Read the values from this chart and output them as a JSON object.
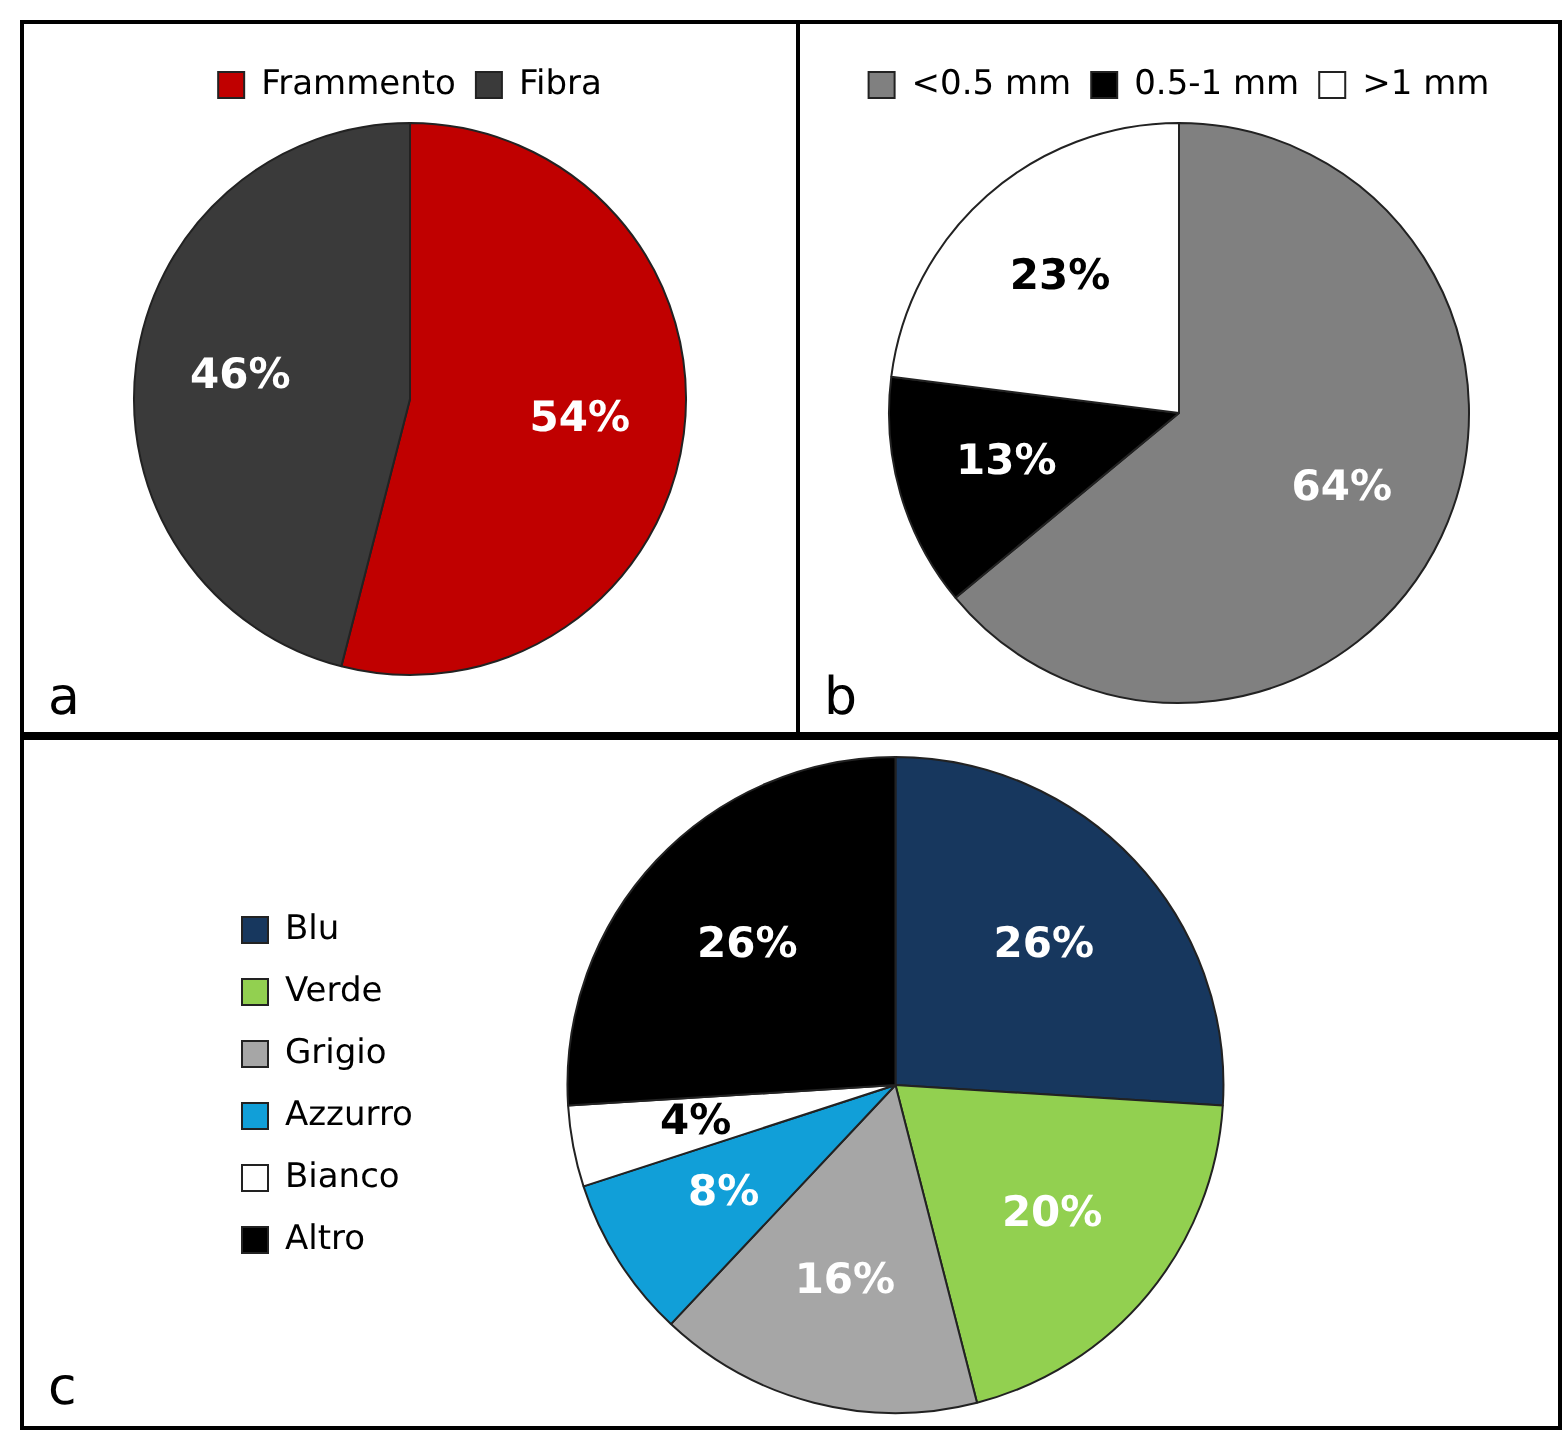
{
  "chart_data": [
    {
      "type": "pie",
      "categories": [
        "Frammento",
        "Fibra"
      ],
      "values": [
        54,
        46
      ],
      "value_labels": [
        "54%",
        "46%"
      ],
      "colors": [
        "#c00000",
        "#3a3a3a"
      ],
      "legend": "top",
      "annotations": [
        "a"
      ]
    },
    {
      "type": "pie",
      "categories": [
        "<0.5 mm",
        "0.5-1 mm",
        ">1 mm"
      ],
      "values": [
        64,
        13,
        23
      ],
      "value_labels": [
        "64%",
        "13%",
        "23%"
      ],
      "colors": [
        "#808080",
        "#000000",
        "#ffffff"
      ],
      "legend": "top",
      "annotations": [
        "b"
      ]
    },
    {
      "type": "pie",
      "categories": [
        "Blu",
        "Verde",
        "Grigio",
        "Azzurro",
        "Bianco",
        "Altro"
      ],
      "values": [
        26,
        20,
        16,
        8,
        4,
        26
      ],
      "value_labels": [
        "26%",
        "20%",
        "16%",
        "8%",
        "4%",
        "26%"
      ],
      "colors": [
        "#17375e",
        "#92d050",
        "#a6a6a6",
        "#119fd8",
        "#ffffff",
        "#000000"
      ],
      "legend": "left",
      "annotations": [
        "c"
      ]
    }
  ]
}
